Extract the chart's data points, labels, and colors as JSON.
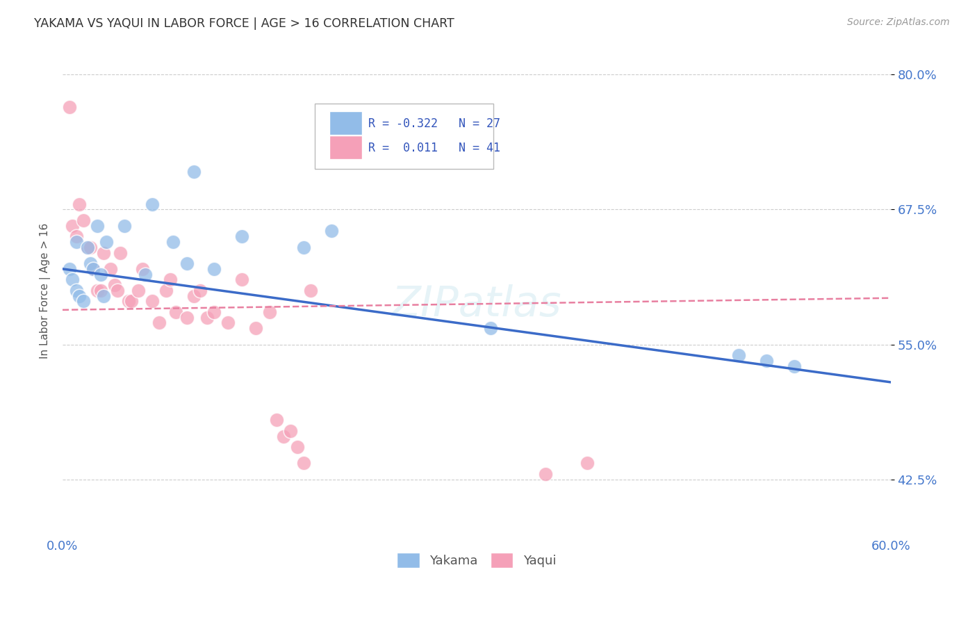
{
  "title": "YAKAMA VS YAQUI IN LABOR FORCE | AGE > 16 CORRELATION CHART",
  "source": "Source: ZipAtlas.com",
  "ylabel": "In Labor Force | Age > 16",
  "xlim": [
    0.0,
    0.6
  ],
  "ylim": [
    0.375,
    0.825
  ],
  "yticks": [
    0.425,
    0.55,
    0.675,
    0.8
  ],
  "yticklabels": [
    "42.5%",
    "55.0%",
    "67.5%",
    "80.0%"
  ],
  "background_color": "#ffffff",
  "grid_color": "#cccccc",
  "yakama_color": "#92bce8",
  "yaqui_color": "#f5a0b8",
  "yakama_R": -0.322,
  "yakama_N": 27,
  "yaqui_R": 0.011,
  "yaqui_N": 41,
  "yakama_line_color": "#3b6bc8",
  "yaqui_line_color": "#e87fa0",
  "watermark": "ZIPatlas",
  "yakama_points_x": [
    0.005,
    0.007,
    0.01,
    0.01,
    0.012,
    0.015,
    0.018,
    0.02,
    0.022,
    0.025,
    0.028,
    0.03,
    0.032,
    0.045,
    0.06,
    0.065,
    0.08,
    0.09,
    0.095,
    0.11,
    0.13,
    0.175,
    0.195,
    0.31,
    0.49,
    0.51,
    0.53
  ],
  "yakama_points_y": [
    0.62,
    0.61,
    0.645,
    0.6,
    0.595,
    0.59,
    0.64,
    0.625,
    0.62,
    0.66,
    0.615,
    0.595,
    0.645,
    0.66,
    0.615,
    0.68,
    0.645,
    0.625,
    0.71,
    0.62,
    0.65,
    0.64,
    0.655,
    0.565,
    0.54,
    0.535,
    0.53
  ],
  "yaqui_points_x": [
    0.005,
    0.007,
    0.01,
    0.012,
    0.015,
    0.018,
    0.02,
    0.022,
    0.025,
    0.028,
    0.03,
    0.035,
    0.038,
    0.04,
    0.042,
    0.048,
    0.05,
    0.055,
    0.058,
    0.065,
    0.07,
    0.075,
    0.078,
    0.082,
    0.09,
    0.095,
    0.1,
    0.105,
    0.11,
    0.12,
    0.13,
    0.14,
    0.15,
    0.155,
    0.16,
    0.165,
    0.17,
    0.175,
    0.18,
    0.35,
    0.38
  ],
  "yaqui_points_y": [
    0.77,
    0.66,
    0.65,
    0.68,
    0.665,
    0.64,
    0.64,
    0.62,
    0.6,
    0.6,
    0.635,
    0.62,
    0.605,
    0.6,
    0.635,
    0.59,
    0.59,
    0.6,
    0.62,
    0.59,
    0.57,
    0.6,
    0.61,
    0.58,
    0.575,
    0.595,
    0.6,
    0.575,
    0.58,
    0.57,
    0.61,
    0.565,
    0.58,
    0.48,
    0.465,
    0.47,
    0.455,
    0.44,
    0.6,
    0.43,
    0.44
  ]
}
